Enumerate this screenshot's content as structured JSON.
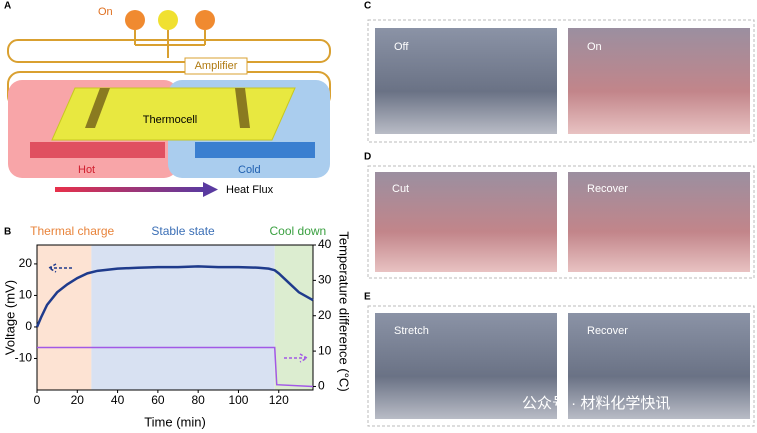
{
  "panel_a": {
    "label": "A",
    "led_state": "On",
    "amplifier": "Amplifier",
    "thermocell": "Thermocell",
    "hot": "Hot",
    "cold": "Cold",
    "heat_flux": "Heat Flux"
  },
  "panel_c": {
    "label": "C",
    "left": "Off",
    "right": "On"
  },
  "panel_d": {
    "label": "D",
    "left": "Cut",
    "right": "Recover"
  },
  "panel_e": {
    "label": "E",
    "left": "Stretch",
    "right": "Recover"
  },
  "watermark": "公众号 · 材料化学快讯",
  "chart_data": {
    "type": "line",
    "label": "B",
    "regions": [
      {
        "label": "Thermal charge",
        "start": 0,
        "end": 27,
        "color": "#fde3d3",
        "text_color": "#e8833a"
      },
      {
        "label": "Stable state",
        "start": 27,
        "end": 118,
        "color": "#d8e1f2",
        "text_color": "#3b6fb6"
      },
      {
        "label": "Cool down",
        "start": 118,
        "end": 137,
        "color": "#dcedd0",
        "text_color": "#3aa040"
      }
    ],
    "x_label": "Time (min)",
    "y_label": "Voltage (mV)",
    "y2_label": "Temperature difference (°C)",
    "xlim": [
      0,
      137
    ],
    "xticks": [
      0,
      20,
      40,
      60,
      80,
      100,
      120
    ],
    "ylim": [
      -20,
      26
    ],
    "yticks": [
      -10,
      0,
      10,
      20
    ],
    "y2lim": [
      -1,
      40
    ],
    "y2ticks": [
      0,
      10,
      20,
      30,
      40
    ],
    "series": [
      {
        "name": "Voltage",
        "color": "#1f3b8c",
        "axis": "y",
        "x": [
          0,
          2,
          5,
          10,
          15,
          20,
          25,
          30,
          40,
          50,
          60,
          70,
          80,
          90,
          100,
          110,
          115,
          118,
          120,
          125,
          130,
          137
        ],
        "values": [
          0,
          3,
          7,
          11,
          13.5,
          15.5,
          17,
          17.8,
          18.5,
          18.8,
          19,
          19,
          19.2,
          19,
          19,
          18.8,
          18.5,
          18,
          17,
          14,
          11,
          8.5
        ]
      },
      {
        "name": "Temperature difference",
        "color": "#a259e6",
        "axis": "y2",
        "x": [
          0,
          118,
          119,
          137
        ],
        "values": [
          11,
          11,
          0.5,
          0
        ]
      }
    ]
  }
}
